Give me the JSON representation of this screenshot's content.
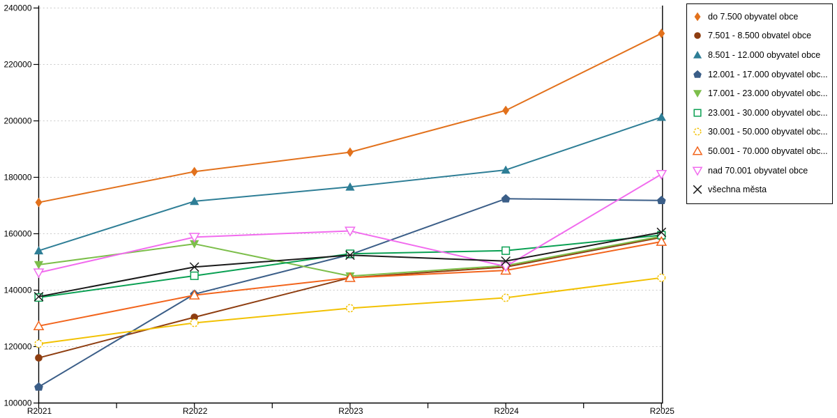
{
  "chart_data": {
    "type": "line",
    "title": "",
    "categories": [
      "R2021",
      "R2022",
      "R2023",
      "R2024",
      "R2025"
    ],
    "yaxis": {
      "min": 100000,
      "max": 240000,
      "tick_step": 20000,
      "tick_labels": [
        "100000",
        "120000",
        "140000",
        "160000",
        "180000",
        "200000",
        "220000",
        "240000"
      ]
    },
    "grid": "horizontal-dotted",
    "legend_position": "top-right",
    "series": [
      {
        "name": "do 7.500 obyvatel obce",
        "color": "#E2711C",
        "marker": "diamond",
        "marker_style": "solid",
        "values": [
          171100,
          182000,
          188900,
          203700,
          231000
        ]
      },
      {
        "name": "7.501 - 8.500 obvatel obce",
        "color": "#8E3D10",
        "marker": "circle",
        "marker_style": "solid",
        "values": [
          116000,
          130400,
          144400,
          148200,
          158700
        ]
      },
      {
        "name": "8.501 - 12.000 obyvatel obce",
        "color": "#2E7E96",
        "marker": "triangle-up",
        "marker_style": "solid",
        "values": [
          154000,
          171500,
          176600,
          182600,
          201300
        ]
      },
      {
        "name": "12.001 - 17.000 obyvatel obc...",
        "color": "#3B5E88",
        "marker": "pentagon",
        "marker_style": "solid",
        "values": [
          105700,
          138600,
          152600,
          172400,
          171800
        ]
      },
      {
        "name": "17.001 - 23.000 obyvatel obc...",
        "color": "#7CBE4A",
        "marker": "triangle-down",
        "marker_style": "solid",
        "values": [
          149000,
          156400,
          145000,
          148700,
          159100
        ]
      },
      {
        "name": "23.001 - 30.000 obyvatel obc...",
        "color": "#0AA053",
        "marker": "square",
        "marker_style": "open",
        "values": [
          137400,
          145100,
          152900,
          154000,
          159500
        ]
      },
      {
        "name": "30.001 - 50.000 obyvatel obc...",
        "color": "#F2C102",
        "marker": "circle",
        "marker_style": "open-dashed",
        "values": [
          121000,
          128400,
          133600,
          137300,
          144400
        ]
      },
      {
        "name": "50.001 - 70.000 obyvatel obc...",
        "color": "#F2641C",
        "marker": "triangle-up",
        "marker_style": "open",
        "values": [
          127300,
          138200,
          144400,
          147000,
          157200
        ]
      },
      {
        "name": "nad 70.001 obyvatel obce",
        "color": "#F16BEE",
        "marker": "triangle-down",
        "marker_style": "open",
        "values": [
          146200,
          158800,
          161000,
          148400,
          181100
        ]
      },
      {
        "name": "všechna města",
        "color": "#1A1A1A",
        "marker": "x-cross",
        "marker_style": "stroke",
        "values": [
          137700,
          148200,
          152400,
          150300,
          160500
        ]
      }
    ],
    "style": {
      "background": "#FFFFFF",
      "axis_color": "#000000",
      "grid_color": "#C9C9C9",
      "label_color": "#000000",
      "legend_border_color": "#000000"
    }
  }
}
